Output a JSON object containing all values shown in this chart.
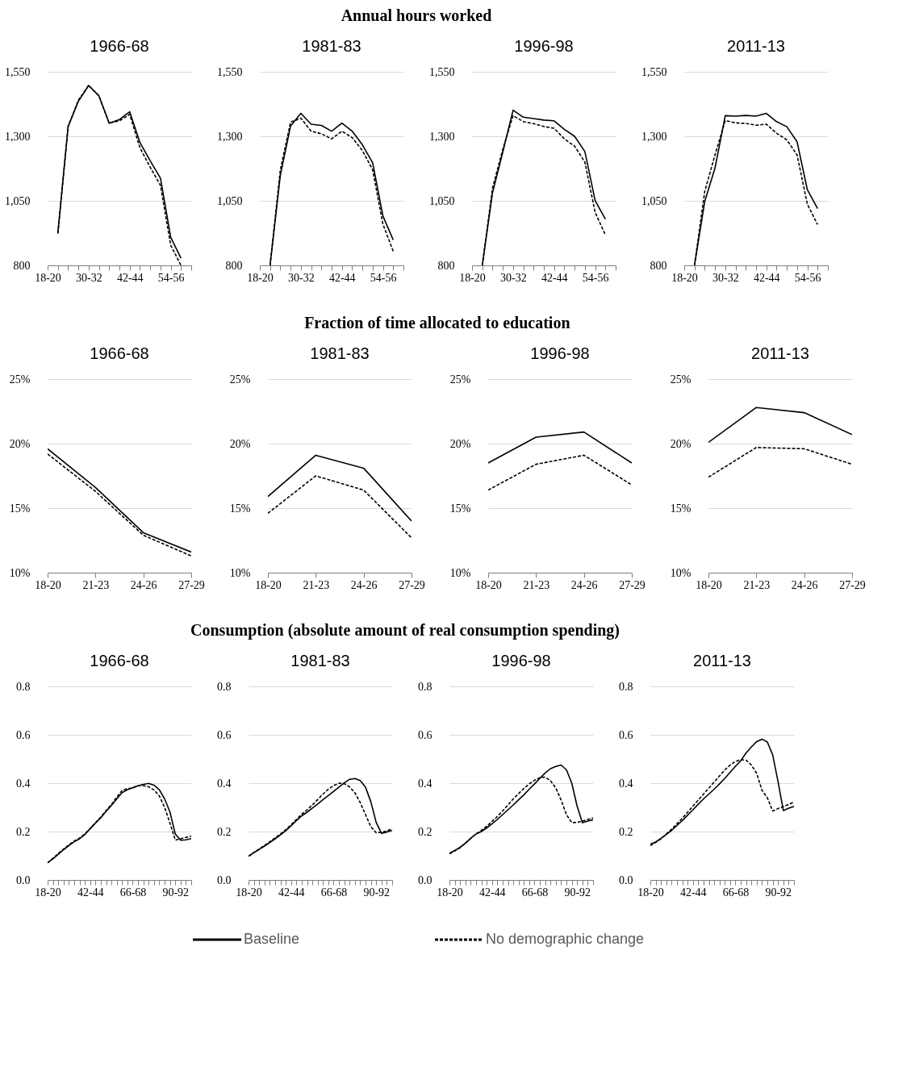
{
  "chart_data": [
    {
      "type": "line",
      "title": "1966-68",
      "legend": "bottom",
      "annotations": [
        "Annual hours worked"
      ],
      "categories": [
        "18-20",
        null,
        null,
        null,
        "30-32",
        null,
        null,
        null,
        "42-44",
        null,
        null,
        null,
        "54-56",
        null,
        null
      ],
      "ylim": [
        800,
        1550
      ],
      "yticks": [
        {
          "value": 800,
          "label": "800"
        },
        {
          "value": 1050,
          "label": "1,050"
        },
        {
          "value": 1300,
          "label": "1,300"
        },
        {
          "value": 1550,
          "label": "1,550"
        }
      ],
      "grid": "y",
      "series": [
        {
          "name": "Baseline",
          "color": "#000000",
          "line_style": "solid",
          "values": [
            null,
            924,
            1338,
            1436,
            1497,
            1457,
            1351,
            1365,
            1395,
            1276,
            1205,
            1138,
            909,
            828,
            null
          ]
        },
        {
          "name": "No demographic change",
          "color": "#000000",
          "line_style": "dashed",
          "values": [
            null,
            924,
            1338,
            1440,
            1497,
            1457,
            1351,
            1360,
            1385,
            1256,
            1180,
            1110,
            878,
            800,
            null
          ]
        }
      ]
    },
    {
      "type": "line",
      "title": "1981-83",
      "categories": [
        "18-20",
        null,
        null,
        null,
        "30-32",
        null,
        null,
        null,
        "42-44",
        null,
        null,
        null,
        "54-56",
        null,
        null
      ],
      "ylim": [
        800,
        1550
      ],
      "yticks": [
        {
          "value": 800,
          "label": "800"
        },
        {
          "value": 1050,
          "label": "1,050"
        },
        {
          "value": 1300,
          "label": "1,300"
        },
        {
          "value": 1550,
          "label": "1,550"
        }
      ],
      "grid": "y",
      "series": [
        {
          "name": "Baseline",
          "color": "#000000",
          "line_style": "solid",
          "values": [
            null,
            800,
            1149,
            1340,
            1389,
            1347,
            1342,
            1320,
            1351,
            1320,
            1267,
            1197,
            991,
            899,
            null
          ]
        },
        {
          "name": "No demographic change",
          "color": "#000000",
          "line_style": "dashed",
          "values": [
            null,
            800,
            1170,
            1355,
            1370,
            1320,
            1310,
            1290,
            1320,
            1295,
            1245,
            1170,
            960,
            855,
            null
          ]
        }
      ]
    },
    {
      "type": "line",
      "title": "1996-98",
      "categories": [
        "18-20",
        null,
        null,
        null,
        "30-32",
        null,
        null,
        null,
        "42-44",
        null,
        null,
        null,
        "54-56",
        null,
        null
      ],
      "ylim": [
        800,
        1550
      ],
      "yticks": [
        {
          "value": 800,
          "label": "800"
        },
        {
          "value": 1050,
          "label": "1,050"
        },
        {
          "value": 1300,
          "label": "1,300"
        },
        {
          "value": 1550,
          "label": "1,550"
        }
      ],
      "grid": "y",
      "series": [
        {
          "name": "Baseline",
          "color": "#000000",
          "line_style": "solid",
          "values": [
            null,
            800,
            1082,
            1239,
            1401,
            1374,
            1369,
            1363,
            1360,
            1327,
            1300,
            1241,
            1051,
            979,
            null
          ]
        },
        {
          "name": "No demographic change",
          "color": "#000000",
          "line_style": "dashed",
          "values": [
            null,
            800,
            1100,
            1250,
            1380,
            1357,
            1349,
            1338,
            1331,
            1290,
            1262,
            1200,
            1005,
            918,
            null
          ]
        }
      ]
    },
    {
      "type": "line",
      "title": "2011-13",
      "categories": [
        "18-20",
        null,
        null,
        null,
        "30-32",
        null,
        null,
        null,
        "42-44",
        null,
        null,
        null,
        "54-56",
        null,
        null
      ],
      "ylim": [
        800,
        1550
      ],
      "yticks": [
        {
          "value": 800,
          "label": "800"
        },
        {
          "value": 1050,
          "label": "1,050"
        },
        {
          "value": 1300,
          "label": "1,300"
        },
        {
          "value": 1550,
          "label": "1,550"
        }
      ],
      "grid": "y",
      "series": [
        {
          "name": "Baseline",
          "color": "#000000",
          "line_style": "solid",
          "values": [
            null,
            800,
            1048,
            1177,
            1380,
            1378,
            1381,
            1378,
            1389,
            1357,
            1337,
            1279,
            1093,
            1020,
            null
          ]
        },
        {
          "name": "No demographic change",
          "color": "#000000",
          "line_style": "dashed",
          "values": [
            null,
            800,
            1087,
            1228,
            1361,
            1352,
            1350,
            1343,
            1347,
            1312,
            1286,
            1228,
            1037,
            958,
            null
          ]
        }
      ]
    },
    {
      "type": "line",
      "title": "1966-68",
      "annotations": [
        "Fraction of time allocated to education"
      ],
      "categories": [
        "18-20",
        "21-23",
        "24-26",
        "27-29"
      ],
      "ylim": [
        10,
        25
      ],
      "yticks": [
        {
          "value": 10,
          "label": "10%"
        },
        {
          "value": 15,
          "label": "15%"
        },
        {
          "value": 20,
          "label": "20%"
        },
        {
          "value": 25,
          "label": "25%"
        }
      ],
      "grid": "y",
      "series": [
        {
          "name": "Baseline",
          "color": "#000000",
          "line_style": "solid",
          "values": [
            19.6,
            16.6,
            13.1,
            11.6
          ]
        },
        {
          "name": "No demographic change",
          "color": "#000000",
          "line_style": "dashed",
          "values": [
            19.2,
            16.3,
            12.9,
            11.3
          ]
        }
      ]
    },
    {
      "type": "line",
      "title": "1981-83",
      "categories": [
        "18-20",
        "21-23",
        "24-26",
        "27-29"
      ],
      "ylim": [
        10,
        25
      ],
      "yticks": [
        {
          "value": 10,
          "label": "10%"
        },
        {
          "value": 15,
          "label": "15%"
        },
        {
          "value": 20,
          "label": "20%"
        },
        {
          "value": 25,
          "label": "25%"
        }
      ],
      "grid": "y",
      "series": [
        {
          "name": "Baseline",
          "color": "#000000",
          "line_style": "solid",
          "values": [
            15.9,
            19.1,
            18.1,
            14.0
          ]
        },
        {
          "name": "No demographic change",
          "color": "#000000",
          "line_style": "dashed",
          "values": [
            14.6,
            17.5,
            16.4,
            12.7
          ]
        }
      ]
    },
    {
      "type": "line",
      "title": "1996-98",
      "categories": [
        "18-20",
        "21-23",
        "24-26",
        "27-29"
      ],
      "ylim": [
        10,
        25
      ],
      "yticks": [
        {
          "value": 10,
          "label": "10%"
        },
        {
          "value": 15,
          "label": "15%"
        },
        {
          "value": 20,
          "label": "20%"
        },
        {
          "value": 25,
          "label": "25%"
        }
      ],
      "grid": "y",
      "series": [
        {
          "name": "Baseline",
          "color": "#000000",
          "line_style": "solid",
          "values": [
            18.5,
            20.5,
            20.9,
            18.5
          ]
        },
        {
          "name": "No demographic change",
          "color": "#000000",
          "line_style": "dashed",
          "values": [
            16.4,
            18.4,
            19.1,
            16.8
          ]
        }
      ]
    },
    {
      "type": "line",
      "title": "2011-13",
      "categories": [
        "18-20",
        "21-23",
        "24-26",
        "27-29"
      ],
      "ylim": [
        10,
        25
      ],
      "yticks": [
        {
          "value": 10,
          "label": "10%"
        },
        {
          "value": 15,
          "label": "15%"
        },
        {
          "value": 20,
          "label": "20%"
        },
        {
          "value": 25,
          "label": "25%"
        }
      ],
      "grid": "y",
      "series": [
        {
          "name": "Baseline",
          "color": "#000000",
          "line_style": "solid",
          "values": [
            20.1,
            22.8,
            22.4,
            20.7
          ]
        },
        {
          "name": "No demographic change",
          "color": "#000000",
          "line_style": "dashed",
          "values": [
            17.4,
            19.7,
            19.6,
            18.4
          ]
        }
      ]
    },
    {
      "type": "line",
      "title": "1966-68",
      "annotations": [
        "Consumption (absolute amount of real consumption spending)"
      ],
      "categories": [
        "18-20",
        null,
        null,
        null,
        null,
        null,
        null,
        null,
        "42-44",
        null,
        null,
        null,
        null,
        null,
        null,
        null,
        "66-68",
        null,
        null,
        null,
        null,
        null,
        null,
        null,
        "90-92",
        null,
        null,
        null
      ],
      "ylim": [
        0,
        0.8
      ],
      "yticks": [
        {
          "value": 0,
          "label": "0.0"
        },
        {
          "value": 0.2,
          "label": "0.2"
        },
        {
          "value": 0.4,
          "label": "0.4"
        },
        {
          "value": 0.6,
          "label": "0.6"
        },
        {
          "value": 0.8,
          "label": "0.8"
        }
      ],
      "grid": "y",
      "series": [
        {
          "name": "Baseline",
          "color": "#000000",
          "line_style": "solid",
          "values": [
            0.072,
            0.087,
            0.106,
            0.125,
            0.142,
            0.158,
            0.17,
            0.188,
            0.212,
            0.235,
            0.257,
            0.284,
            0.308,
            0.335,
            0.361,
            0.373,
            0.381,
            0.389,
            0.395,
            0.399,
            0.392,
            0.373,
            0.335,
            0.281,
            0.19,
            0.164,
            0.166,
            0.171
          ]
        },
        {
          "name": "No demographic change",
          "color": "#000000",
          "line_style": "dashed",
          "values": [
            0.07,
            0.09,
            0.109,
            0.128,
            0.145,
            0.161,
            0.173,
            0.19,
            0.213,
            0.237,
            0.26,
            0.287,
            0.312,
            0.342,
            0.37,
            0.377,
            0.381,
            0.39,
            0.39,
            0.385,
            0.372,
            0.347,
            0.3,
            0.235,
            0.165,
            0.17,
            0.176,
            0.181
          ]
        }
      ]
    },
    {
      "type": "line",
      "title": "1981-83",
      "categories": [
        "18-20",
        null,
        null,
        null,
        null,
        null,
        null,
        null,
        "42-44",
        null,
        null,
        null,
        null,
        null,
        null,
        null,
        "66-68",
        null,
        null,
        null,
        null,
        null,
        null,
        null,
        "90-92",
        null,
        null,
        null
      ],
      "ylim": [
        0,
        0.8
      ],
      "yticks": [
        {
          "value": 0,
          "label": "0.0"
        },
        {
          "value": 0.2,
          "label": "0.2"
        },
        {
          "value": 0.4,
          "label": "0.4"
        },
        {
          "value": 0.6,
          "label": "0.6"
        },
        {
          "value": 0.8,
          "label": "0.8"
        }
      ],
      "grid": "y",
      "series": [
        {
          "name": "Baseline",
          "color": "#000000",
          "line_style": "solid",
          "values": [
            0.098,
            0.113,
            0.126,
            0.14,
            0.155,
            0.17,
            0.186,
            0.204,
            0.224,
            0.245,
            0.265,
            0.28,
            0.297,
            0.314,
            0.332,
            0.349,
            0.366,
            0.384,
            0.401,
            0.416,
            0.419,
            0.411,
            0.383,
            0.323,
            0.238,
            0.193,
            0.198,
            0.205
          ]
        },
        {
          "name": "No demographic change",
          "color": "#000000",
          "line_style": "dashed",
          "values": [
            0.098,
            0.114,
            0.128,
            0.143,
            0.158,
            0.174,
            0.19,
            0.208,
            0.228,
            0.25,
            0.272,
            0.29,
            0.31,
            0.332,
            0.355,
            0.375,
            0.39,
            0.4,
            0.398,
            0.385,
            0.36,
            0.32,
            0.27,
            0.22,
            0.195,
            0.197,
            0.203,
            0.212
          ]
        }
      ]
    },
    {
      "type": "line",
      "title": "1996-98",
      "categories": [
        "18-20",
        null,
        null,
        null,
        null,
        null,
        null,
        null,
        "42-44",
        null,
        null,
        null,
        null,
        null,
        null,
        null,
        "66-68",
        null,
        null,
        null,
        null,
        null,
        null,
        null,
        "90-92",
        null,
        null,
        null
      ],
      "ylim": [
        0,
        0.8
      ],
      "yticks": [
        {
          "value": 0,
          "label": "0.0"
        },
        {
          "value": 0.2,
          "label": "0.2"
        },
        {
          "value": 0.4,
          "label": "0.4"
        },
        {
          "value": 0.6,
          "label": "0.6"
        },
        {
          "value": 0.8,
          "label": "0.8"
        }
      ],
      "grid": "y",
      "series": [
        {
          "name": "Baseline",
          "color": "#000000",
          "line_style": "solid",
          "values": [
            0.11,
            0.122,
            0.135,
            0.152,
            0.172,
            0.19,
            0.2,
            0.215,
            0.232,
            0.25,
            0.27,
            0.29,
            0.31,
            0.331,
            0.352,
            0.375,
            0.397,
            0.42,
            0.442,
            0.46,
            0.469,
            0.475,
            0.455,
            0.4,
            0.305,
            0.237,
            0.243,
            0.249
          ]
        },
        {
          "name": "No demographic change",
          "color": "#000000",
          "line_style": "dashed",
          "values": [
            0.108,
            0.12,
            0.133,
            0.152,
            0.172,
            0.19,
            0.205,
            0.222,
            0.242,
            0.262,
            0.285,
            0.31,
            0.335,
            0.357,
            0.378,
            0.397,
            0.412,
            0.423,
            0.425,
            0.41,
            0.38,
            0.33,
            0.27,
            0.237,
            0.238,
            0.243,
            0.25,
            0.257
          ]
        }
      ]
    },
    {
      "type": "line",
      "title": "2011-13",
      "categories": [
        "18-20",
        null,
        null,
        null,
        null,
        null,
        null,
        null,
        "42-44",
        null,
        null,
        null,
        null,
        null,
        null,
        null,
        "66-68",
        null,
        null,
        null,
        null,
        null,
        null,
        null,
        "90-92",
        null,
        null,
        null
      ],
      "ylim": [
        0,
        0.8
      ],
      "yticks": [
        {
          "value": 0,
          "label": "0.0"
        },
        {
          "value": 0.2,
          "label": "0.2"
        },
        {
          "value": 0.4,
          "label": "0.4"
        },
        {
          "value": 0.6,
          "label": "0.6"
        },
        {
          "value": 0.8,
          "label": "0.8"
        }
      ],
      "grid": "y",
      "series": [
        {
          "name": "Baseline",
          "color": "#000000",
          "line_style": "solid",
          "values": [
            0.148,
            0.157,
            0.172,
            0.188,
            0.205,
            0.225,
            0.245,
            0.268,
            0.29,
            0.313,
            0.335,
            0.355,
            0.375,
            0.397,
            0.42,
            0.445,
            0.47,
            0.493,
            0.525,
            0.55,
            0.572,
            0.582,
            0.57,
            0.517,
            0.407,
            0.287,
            0.297,
            0.304
          ]
        },
        {
          "name": "No demographic change",
          "color": "#000000",
          "line_style": "dashed",
          "values": [
            0.142,
            0.155,
            0.17,
            0.19,
            0.21,
            0.232,
            0.255,
            0.28,
            0.305,
            0.33,
            0.355,
            0.38,
            0.405,
            0.43,
            0.455,
            0.475,
            0.49,
            0.497,
            0.495,
            0.475,
            0.44,
            0.37,
            0.34,
            0.285,
            0.295,
            0.303,
            0.312,
            0.322
          ]
        }
      ]
    }
  ]
}
